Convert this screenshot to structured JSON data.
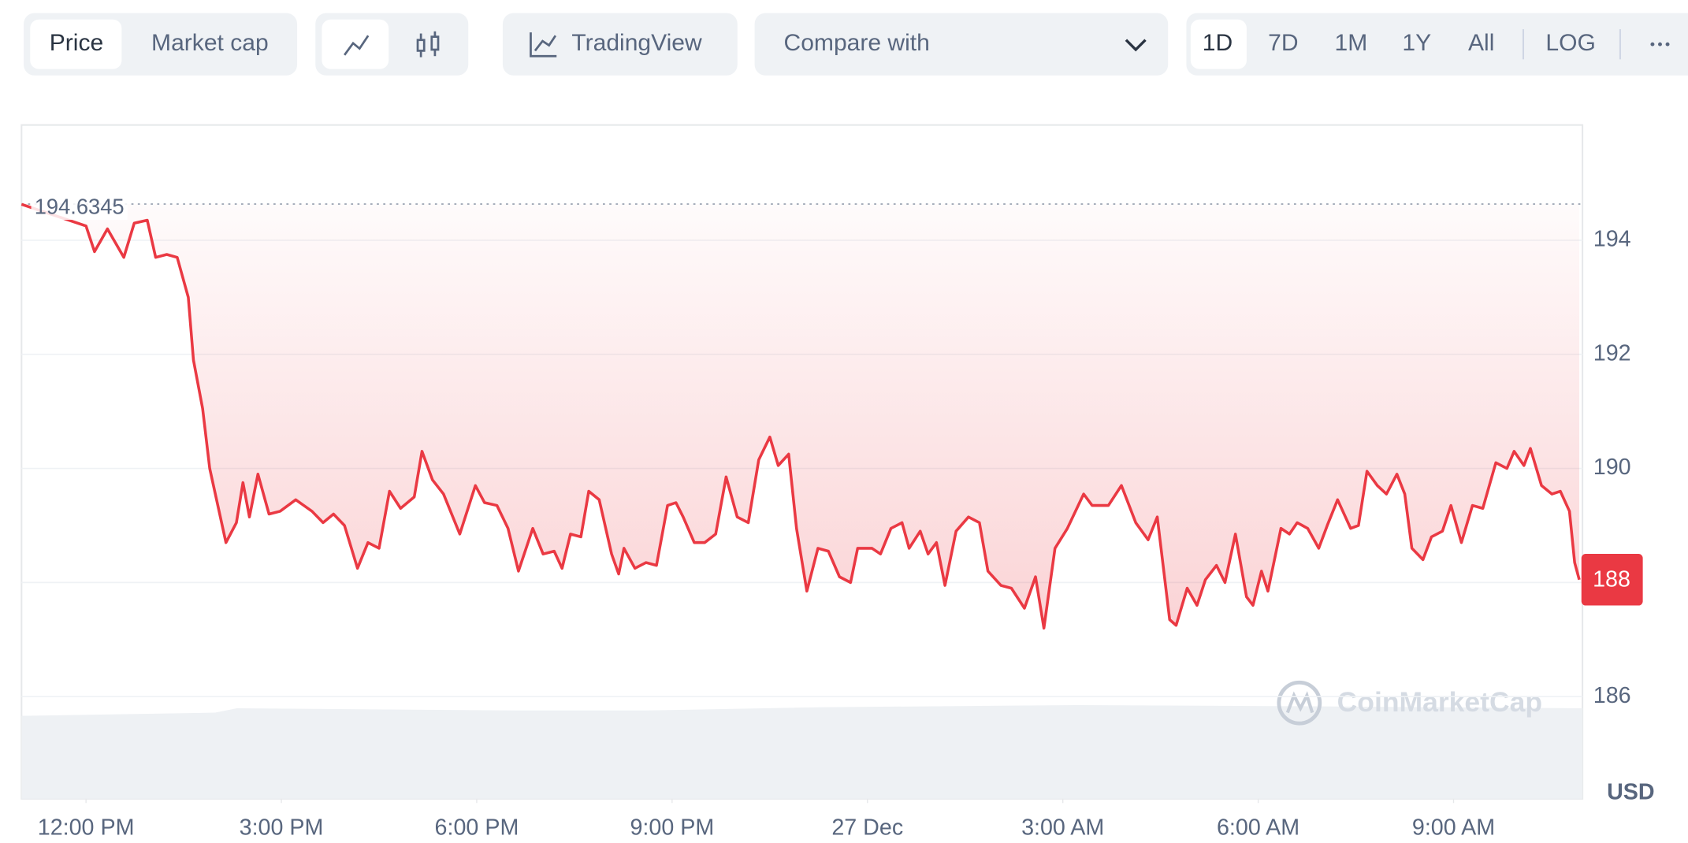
{
  "toolbar": {
    "views": [
      "Price",
      "Market cap"
    ],
    "tradingview": "TradingView",
    "compare": "Compare with",
    "ranges": [
      "1D",
      "7D",
      "1M",
      "1Y",
      "All",
      "LOG"
    ]
  },
  "chart_data": {
    "type": "line",
    "color": "#ea3943",
    "x": [
      -0.99,
      0,
      0.13,
      0.33,
      0.58,
      0.74,
      0.94,
      1.07,
      1.24,
      1.4,
      1.57,
      1.65,
      1.79,
      1.9,
      2.15,
      2.31,
      2.41,
      2.51,
      2.64,
      2.81,
      2.98,
      3.22,
      3.47,
      3.64,
      3.8,
      3.97,
      4.17,
      4.33,
      4.5,
      4.66,
      4.83,
      5.04,
      5.16,
      5.32,
      5.49,
      5.74,
      5.98,
      6.12,
      6.31,
      6.48,
      6.64,
      6.86,
      7.02,
      7.19,
      7.31,
      7.44,
      7.6,
      7.72,
      7.88,
      8.07,
      8.18,
      8.26,
      8.43,
      8.6,
      8.76,
      8.93,
      9.06,
      9.17,
      9.34,
      9.5,
      9.67,
      9.83,
      10.0,
      10.17,
      10.33,
      10.5,
      10.63,
      10.79,
      10.91,
      11.07,
      11.24,
      11.4,
      11.57,
      11.74,
      11.85,
      12.07,
      12.2,
      12.36,
      12.53,
      12.64,
      12.81,
      12.93,
      13.06,
      13.19,
      13.36,
      13.55,
      13.72,
      13.85,
      14.05,
      14.21,
      14.41,
      14.58,
      14.71,
      14.88,
      15.07,
      15.32,
      15.45,
      15.7,
      15.9,
      16.12,
      16.31,
      16.45,
      16.64,
      16.74,
      16.91,
      17.06,
      17.19,
      17.36,
      17.49,
      17.65,
      17.82,
      17.92,
      18.05,
      18.15,
      18.35,
      18.48,
      18.6,
      18.76,
      18.93,
      19.06,
      19.22,
      19.42,
      19.54,
      19.67,
      19.83,
      19.97,
      20.13,
      20.25,
      20.36,
      20.53,
      20.66,
      20.83,
      20.96,
      21.12,
      21.29,
      21.45,
      21.65,
      21.82,
      21.93,
      22.08,
      22.18,
      22.35,
      22.51,
      22.64,
      22.78,
      22.86,
      22.93
    ],
    "values": [
      194.63,
      194.25,
      193.8,
      194.2,
      193.7,
      194.3,
      194.35,
      193.7,
      193.75,
      193.7,
      193.0,
      191.9,
      191.05,
      190.0,
      188.7,
      189.05,
      189.75,
      189.15,
      189.9,
      189.2,
      189.25,
      189.45,
      189.25,
      189.05,
      189.2,
      189.0,
      188.25,
      188.7,
      188.6,
      189.6,
      189.3,
      189.5,
      190.3,
      189.8,
      189.55,
      188.85,
      189.7,
      189.4,
      189.35,
      188.95,
      188.2,
      188.95,
      188.5,
      188.55,
      188.25,
      188.85,
      188.8,
      189.6,
      189.45,
      188.5,
      188.15,
      188.6,
      188.25,
      188.35,
      188.3,
      189.35,
      189.4,
      189.15,
      188.7,
      188.7,
      188.85,
      189.85,
      189.15,
      189.05,
      190.15,
      190.55,
      190.05,
      190.25,
      188.95,
      187.85,
      188.6,
      188.55,
      188.1,
      188.0,
      188.6,
      188.6,
      188.5,
      188.95,
      189.05,
      188.6,
      188.9,
      188.5,
      188.7,
      187.95,
      188.9,
      189.15,
      189.05,
      188.2,
      187.95,
      187.9,
      187.55,
      188.1,
      187.2,
      188.6,
      188.95,
      189.55,
      189.35,
      189.35,
      189.7,
      189.05,
      188.75,
      189.15,
      187.35,
      187.25,
      187.9,
      187.6,
      188.05,
      188.3,
      188.0,
      188.85,
      187.75,
      187.6,
      188.2,
      187.85,
      188.95,
      188.85,
      189.05,
      188.95,
      188.6,
      189.0,
      189.45,
      188.95,
      189.0,
      189.95,
      189.7,
      189.55,
      189.9,
      189.55,
      188.6,
      188.4,
      188.8,
      188.9,
      189.35,
      188.7,
      189.35,
      189.3,
      190.1,
      190.0,
      190.3,
      190.05,
      190.35,
      189.7,
      189.55,
      189.6,
      189.25,
      188.35,
      188.05
    ],
    "xlim": [
      -0.99,
      22.98
    ],
    "xticks": [
      {
        "value": 0,
        "label": "12:00 PM"
      },
      {
        "value": 3,
        "label": "3:00 PM"
      },
      {
        "value": 6,
        "label": "6:00 PM"
      },
      {
        "value": 9,
        "label": "9:00 PM"
      },
      {
        "value": 12,
        "label": "27 Dec"
      },
      {
        "value": 15,
        "label": "3:00 AM"
      },
      {
        "value": 18,
        "label": "6:00 AM"
      },
      {
        "value": 21,
        "label": "9:00 AM"
      }
    ],
    "ylim": [
      184.21,
      196.02
    ],
    "yticks": [
      186,
      188,
      190,
      192,
      194
    ],
    "grid": true,
    "reference": 194.6345,
    "last_label": "188",
    "watermark": "CoinMarketCap",
    "unit": "USD"
  }
}
